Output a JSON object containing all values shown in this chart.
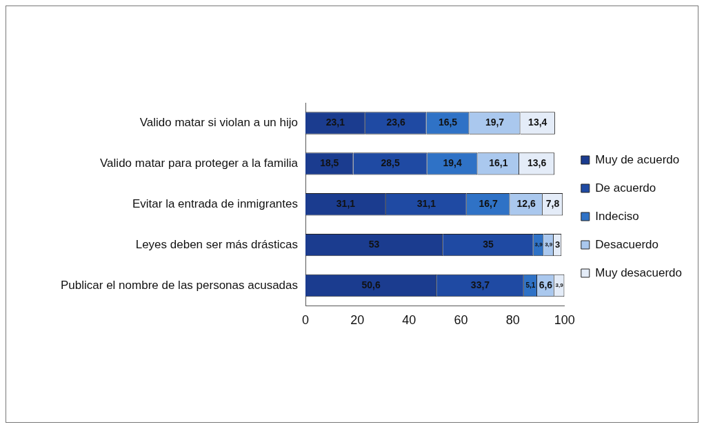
{
  "chart_data": {
    "type": "bar",
    "orientation": "horizontal",
    "stacked": true,
    "categories": [
      "Valido matar si violan a un hijo",
      "Valido matar para proteger a la familia",
      "Evitar la entrada de inmigrantes",
      "Leyes deben ser más drásticas",
      "Publicar el nombre de las personas acusadas"
    ],
    "series": [
      {
        "name": "Muy de acuerdo",
        "color": "#1b3c8f",
        "values": [
          23.1,
          18.5,
          31.1,
          53,
          50.6
        ],
        "value_labels": [
          "23,1",
          "18,5",
          "31,1",
          "53",
          "50,6"
        ]
      },
      {
        "name": "De acuerdo",
        "color": "#1f4aa3",
        "values": [
          23.6,
          28.5,
          31.1,
          35,
          33.7
        ],
        "value_labels": [
          "23,6",
          "28,5",
          "31,1",
          "35",
          "33,7"
        ]
      },
      {
        "name": "Indeciso",
        "color": "#2f72c6",
        "values": [
          16.5,
          19.4,
          16.7,
          3.9,
          5.1
        ],
        "value_labels": [
          "16,5",
          "19,4",
          "16,7",
          "3,9",
          "5,1"
        ]
      },
      {
        "name": "Desacuerdo",
        "color": "#aac8ee",
        "values": [
          19.7,
          16.1,
          12.6,
          3.9,
          6.6
        ],
        "value_labels": [
          "19,7",
          "16,1",
          "12,6",
          "3,9",
          "6,6"
        ]
      },
      {
        "name": "Muy desacuerdo",
        "color": "#e4ecf8",
        "values": [
          13.4,
          13.6,
          7.8,
          3,
          3.9
        ],
        "value_labels": [
          "13,4",
          "13,6",
          "7,8",
          "3",
          "3,9"
        ]
      }
    ],
    "xlim": [
      0,
      100
    ],
    "xticks": [
      0,
      20,
      40,
      60,
      80,
      100
    ],
    "grid": false,
    "legend": "right"
  }
}
